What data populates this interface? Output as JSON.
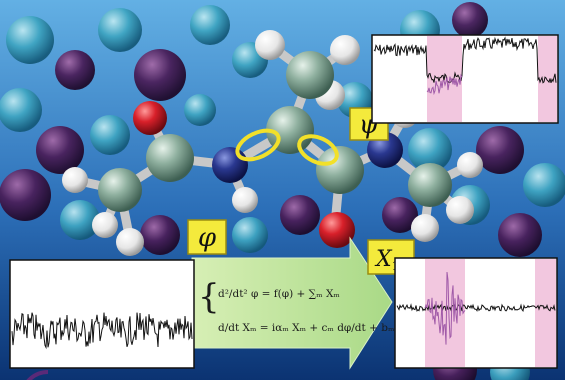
{
  "labels": {
    "psi": "ψ",
    "phi": "φ",
    "x16_base": "X",
    "x16_sub": "16"
  },
  "equations": {
    "eq1_lhs": "d²/dt² φ = f(φ) + ∑ₘ Xₘ",
    "eq2_lhs": "d/dt Xₘ = iαₘ Xₘ + cₘ dφ/dt + bₘη"
  },
  "colors": {
    "background_top": "#5aa6dd",
    "background_bottom": "#0a3a7a",
    "label_box": "#f4ea3c",
    "arrow": "#bfe39a",
    "trace_dark": "#111111",
    "trace_purple": "#a05aa8",
    "highlight_band": "#f2c7df",
    "carbon": "#86a89a",
    "hydrogen": "#f3f3f3",
    "oxygen": "#d8202a",
    "nitrogen": "#2a3890",
    "rotation_arrows": "#f2e02a"
  }
}
